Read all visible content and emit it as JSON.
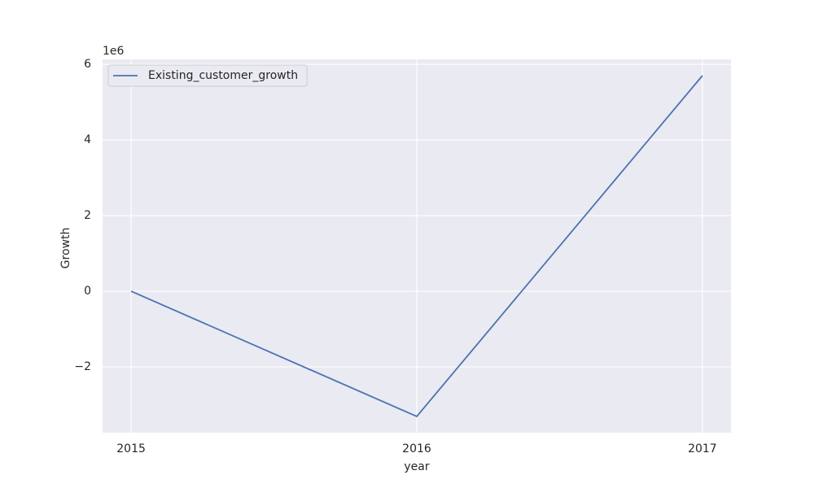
{
  "chart_data": {
    "type": "line",
    "x": [
      2015,
      2016,
      2017
    ],
    "series": [
      {
        "name": "Existing_customer_growth",
        "color": "#4c72b0",
        "values": [
          0,
          -3.31,
          5.7
        ]
      }
    ],
    "xlabel": "year",
    "ylabel": "Growth",
    "y_offset_label": "1e6",
    "xlim": [
      2014.9,
      2017.1
    ],
    "xticks": [
      2015,
      2016,
      2017
    ],
    "ylim": [
      -3.74,
      6.13
    ],
    "yticks": [
      {
        "value": -2,
        "label": "−2"
      },
      0,
      2,
      4,
      6
    ],
    "grid": true,
    "legend": "upper-left",
    "background": "#eaeaf2"
  }
}
